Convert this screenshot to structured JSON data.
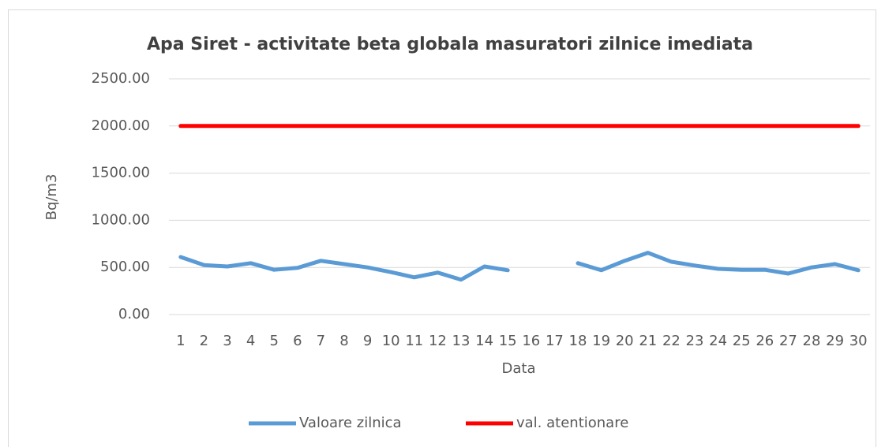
{
  "chart_data": {
    "type": "line",
    "title": "Apa Siret - activitate beta globala masuratori zilnice imediata",
    "x_label": "Data",
    "y_label": "Bq/m3",
    "categories": [
      "1",
      "2",
      "3",
      "4",
      "5",
      "6",
      "7",
      "8",
      "9",
      "10",
      "11",
      "12",
      "13",
      "14",
      "15",
      "16",
      "17",
      "18",
      "19",
      "20",
      "21",
      "22",
      "23",
      "24",
      "25",
      "26",
      "27",
      "28",
      "29",
      "30"
    ],
    "series": [
      {
        "name": "Valoare zilnica",
        "color": "#5b9bd5",
        "values": [
          610,
          525,
          510,
          545,
          475,
          495,
          570,
          535,
          500,
          450,
          395,
          445,
          370,
          510,
          470,
          null,
          null,
          545,
          470,
          570,
          655,
          560,
          520,
          485,
          475,
          475,
          435,
          500,
          535,
          470
        ]
      },
      {
        "name": "val. atentionare",
        "color": "#ff0000",
        "values": [
          2000,
          2000,
          2000,
          2000,
          2000,
          2000,
          2000,
          2000,
          2000,
          2000,
          2000,
          2000,
          2000,
          2000,
          2000,
          2000,
          2000,
          2000,
          2000,
          2000,
          2000,
          2000,
          2000,
          2000,
          2000,
          2000,
          2000,
          2000,
          2000,
          2000
        ]
      }
    ],
    "ylim": [
      0,
      2500
    ],
    "yticks": [
      {
        "value": 0,
        "label": "0.00"
      },
      {
        "value": 500,
        "label": "500.00"
      },
      {
        "value": 1000,
        "label": "1000.00"
      },
      {
        "value": 1500,
        "label": "1500.00"
      },
      {
        "value": 2000,
        "label": "2000.00"
      },
      {
        "value": 2500,
        "label": "2500.00"
      }
    ],
    "grid": true,
    "legend": "bottom"
  }
}
